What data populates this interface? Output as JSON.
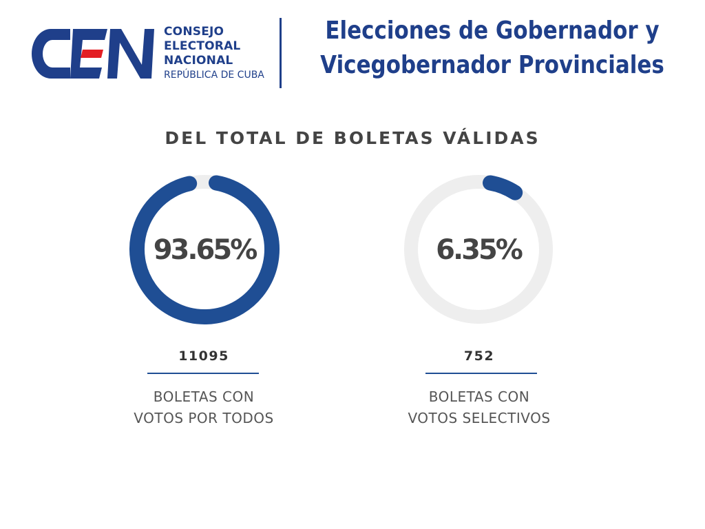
{
  "logo": {
    "lines": [
      "CONSEJO",
      "ELECTORAL",
      "NACIONAL"
    ],
    "sub": "REPÚBLICA DE CUBA",
    "colors": {
      "blue": "#1f3f8a",
      "red": "#e31e24"
    }
  },
  "title": {
    "line1": "Elecciones de Gobernador y",
    "line2": "Vicegobernador Provinciales"
  },
  "subtitle": "DEL TOTAL DE BOLETAS VÁLIDAS",
  "colors": {
    "accent": "#1f4e94",
    "track": "#eeeeee",
    "text": "#444444"
  },
  "chart_data": {
    "type": "pie",
    "title": "DEL TOTAL DE BOLETAS VÁLIDAS",
    "slices": [
      {
        "label_lines": [
          "BOLETAS CON",
          "VOTOS POR TODOS"
        ],
        "value": 11095,
        "percent": 93.65,
        "percent_label": "93.65%",
        "value_label": "11095"
      },
      {
        "label_lines": [
          "BOLETAS CON",
          "VOTOS SELECTIVOS"
        ],
        "value": 752,
        "percent": 6.35,
        "percent_label": "6.35%",
        "value_label": "752"
      }
    ]
  }
}
